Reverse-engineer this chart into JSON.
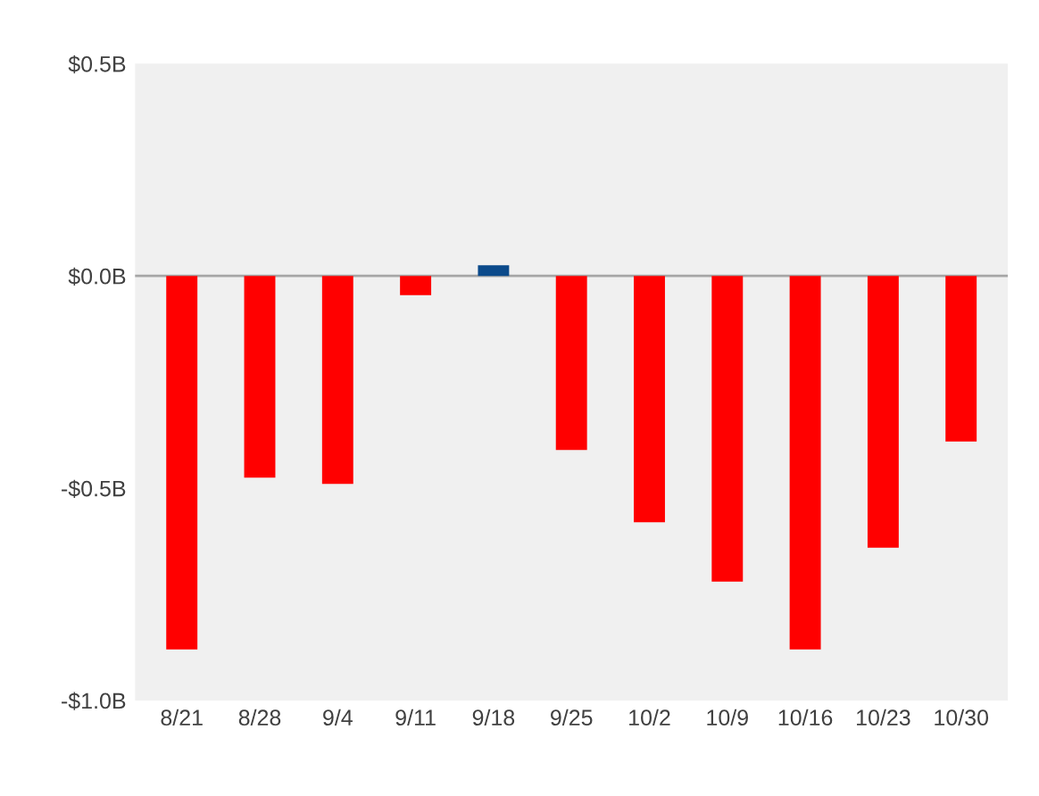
{
  "chart_data": {
    "type": "bar",
    "categories": [
      "8/21",
      "8/28",
      "9/4",
      "9/11",
      "9/18",
      "9/25",
      "10/2",
      "10/9",
      "10/16",
      "10/23",
      "10/30"
    ],
    "values": [
      -0.88,
      -0.475,
      -0.49,
      -0.045,
      0.025,
      -0.41,
      -0.58,
      -0.72,
      -0.88,
      -0.64,
      -0.39
    ],
    "colors": [
      "#ff0000",
      "#ff0000",
      "#ff0000",
      "#ff0000",
      "#0b4a8b",
      "#ff0000",
      "#ff0000",
      "#ff0000",
      "#ff0000",
      "#ff0000",
      "#ff0000"
    ],
    "ylim": [
      -1.0,
      0.5
    ],
    "yticks": [
      {
        "value": 0.5,
        "label": "$0.5B"
      },
      {
        "value": 0.0,
        "label": "$0.0B"
      },
      {
        "value": -0.5,
        "label": "-$0.5B"
      },
      {
        "value": -1.0,
        "label": "-$1.0B"
      }
    ],
    "ref_lines": [
      {
        "axis": "y",
        "value": 0,
        "color": "#a6a6a6"
      }
    ]
  }
}
